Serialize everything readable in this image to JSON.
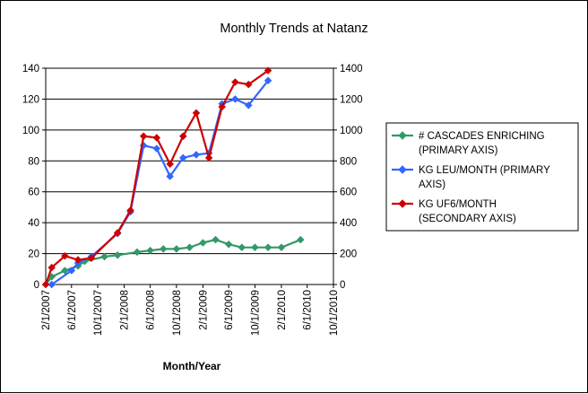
{
  "chart_data": {
    "type": "line",
    "title": "Monthly Trends at Natanz",
    "xlabel": "Month/Year",
    "ylabel_left": "",
    "ylabel_right": "",
    "ylim_left": [
      0,
      140
    ],
    "ylim_right": [
      0,
      1400
    ],
    "yticks_left": [
      "0",
      "20",
      "40",
      "60",
      "80",
      "100",
      "120",
      "140"
    ],
    "yticks_right": [
      "0",
      "200",
      "400",
      "600",
      "800",
      "1000",
      "1200",
      "1400"
    ],
    "x_range": [
      "2/1/2007",
      "10/1/2010"
    ],
    "x_tick_labels": [
      "2/1/2007",
      "6/1/2007",
      "10/1/2007",
      "2/1/2008",
      "6/1/2008",
      "10/1/2008",
      "2/1/2009",
      "6/1/2009",
      "10/1/2009",
      "2/1/2010",
      "6/1/2010",
      "10/1/2010"
    ],
    "grid": "horizontal major gridlines",
    "legend_position": "right",
    "series": [
      {
        "name": "# CASCADES ENRICHING (PRIMARY AXIS)",
        "axis": "primary",
        "color": "#339966",
        "marker": "diamond",
        "points": [
          {
            "x": "2007-02-01",
            "y": 0
          },
          {
            "x": "2007-03-01",
            "y": 5
          },
          {
            "x": "2007-05-01",
            "y": 9
          },
          {
            "x": "2007-07-01",
            "y": 12
          },
          {
            "x": "2007-08-01",
            "y": 15
          },
          {
            "x": "2007-11-01",
            "y": 18
          },
          {
            "x": "2008-01-01",
            "y": 19
          },
          {
            "x": "2008-04-01",
            "y": 21
          },
          {
            "x": "2008-06-01",
            "y": 22
          },
          {
            "x": "2008-08-01",
            "y": 23
          },
          {
            "x": "2008-10-01",
            "y": 23
          },
          {
            "x": "2008-12-01",
            "y": 24
          },
          {
            "x": "2009-02-01",
            "y": 27
          },
          {
            "x": "2009-04-01",
            "y": 29
          },
          {
            "x": "2009-06-01",
            "y": 26
          },
          {
            "x": "2009-08-01",
            "y": 24
          },
          {
            "x": "2009-10-01",
            "y": 24
          },
          {
            "x": "2009-12-01",
            "y": 24
          },
          {
            "x": "2010-02-01",
            "y": 24
          },
          {
            "x": "2010-05-01",
            "y": 29
          }
        ]
      },
      {
        "name": "KG LEU/MONTH (PRIMARY AXIS)",
        "axis": "primary",
        "color": "#3366ff",
        "marker": "diamond",
        "points": [
          {
            "x": "2007-03-01",
            "y": 0
          },
          {
            "x": "2007-06-01",
            "y": 9
          },
          {
            "x": "2007-07-01",
            "y": 14
          },
          {
            "x": "2007-09-01",
            "y": 18
          },
          {
            "x": "2008-01-01",
            "y": 33
          },
          {
            "x": "2008-03-01",
            "y": 47
          },
          {
            "x": "2008-05-01",
            "y": 90
          },
          {
            "x": "2008-07-01",
            "y": 88
          },
          {
            "x": "2008-09-01",
            "y": 70
          },
          {
            "x": "2008-11-01",
            "y": 82
          },
          {
            "x": "2009-01-01",
            "y": 84
          },
          {
            "x": "2009-03-01",
            "y": 85
          },
          {
            "x": "2009-05-01",
            "y": 117
          },
          {
            "x": "2009-07-01",
            "y": 120
          },
          {
            "x": "2009-09-01",
            "y": 116
          },
          {
            "x": "2009-12-01",
            "y": 132
          }
        ]
      },
      {
        "name": "KG UF6/MONTH (SECONDARY AXIS)",
        "axis": "secondary",
        "color": "#cc0000",
        "marker": "diamond",
        "points": [
          {
            "x": "2007-02-01",
            "y": 0
          },
          {
            "x": "2007-03-01",
            "y": 110
          },
          {
            "x": "2007-05-01",
            "y": 185
          },
          {
            "x": "2007-07-01",
            "y": 160
          },
          {
            "x": "2007-09-01",
            "y": 170
          },
          {
            "x": "2008-01-01",
            "y": 335
          },
          {
            "x": "2008-03-01",
            "y": 480
          },
          {
            "x": "2008-05-01",
            "y": 960
          },
          {
            "x": "2008-07-01",
            "y": 950
          },
          {
            "x": "2008-09-01",
            "y": 780
          },
          {
            "x": "2008-11-01",
            "y": 960
          },
          {
            "x": "2009-01-01",
            "y": 1110
          },
          {
            "x": "2009-03-01",
            "y": 820
          },
          {
            "x": "2009-05-01",
            "y": 1150
          },
          {
            "x": "2009-07-01",
            "y": 1310
          },
          {
            "x": "2009-09-01",
            "y": 1295
          },
          {
            "x": "2009-12-01",
            "y": 1385
          }
        ]
      }
    ]
  }
}
